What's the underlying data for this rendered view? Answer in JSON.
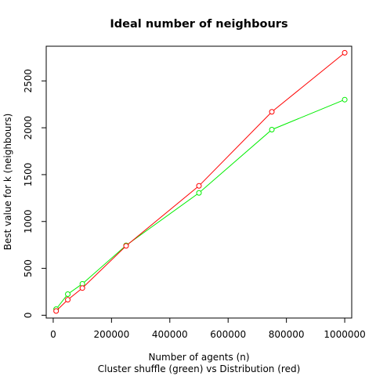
{
  "chart_data": {
    "type": "line",
    "title": "Ideal number of neighbours",
    "xlabel": "Number of agents (n)",
    "subtitle": "Cluster shuffle (green) vs Distribution (red)",
    "ylabel": "Best value for k (neighbours)",
    "xlim": [
      -24000,
      1024000
    ],
    "ylim": [
      -30,
      2870
    ],
    "x_ticks": [
      0,
      200000,
      400000,
      600000,
      800000,
      1000000
    ],
    "x_tick_labels": [
      "0",
      "200000",
      "400000",
      "600000",
      "800000",
      "1000000"
    ],
    "y_ticks": [
      0,
      500,
      1000,
      1500,
      2000,
      2500
    ],
    "y_tick_labels": [
      "0",
      "500",
      "1000",
      "1500",
      "2000",
      "2500"
    ],
    "grid": false,
    "series": [
      {
        "color": "#ff0000",
        "points": [
          [
            10000,
            45
          ],
          [
            50000,
            165
          ],
          [
            100000,
            290
          ],
          [
            250000,
            740
          ],
          [
            500000,
            1380
          ],
          [
            750000,
            2170
          ],
          [
            1000000,
            2800
          ]
        ]
      },
      {
        "color": "#00ee00",
        "points": [
          [
            10000,
            65
          ],
          [
            50000,
            225
          ],
          [
            100000,
            335
          ],
          [
            250000,
            745
          ],
          [
            500000,
            1305
          ],
          [
            750000,
            1980
          ],
          [
            1000000,
            2300
          ]
        ]
      }
    ]
  }
}
